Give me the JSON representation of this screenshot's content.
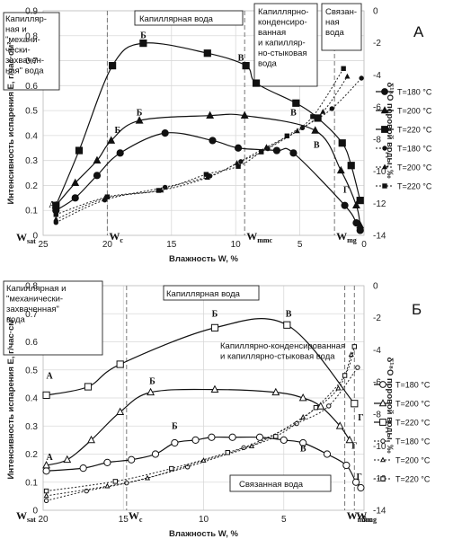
{
  "chart_data": [
    {
      "type": "line",
      "panel_label": "А",
      "xlabel": "Влажность W, %",
      "ylabel": "Интенсивность испарения E, г/час·см²",
      "y2label": "δ¹⁸O поровой воды, ‰",
      "xlim": [
        25,
        0
      ],
      "ylim": [
        0,
        0.9
      ],
      "y2lim": [
        -14,
        0
      ],
      "x_ticks": [
        "25",
        "20",
        "15",
        "10",
        "5",
        "0"
      ],
      "y_ticks": [
        "0",
        "0.1",
        "0.2",
        "0.3",
        "0.4",
        "0.5",
        "0.6",
        "0.7",
        "0.8",
        "0.9"
      ],
      "y2_ticks": [
        "-14",
        "-12",
        "-10",
        "-8",
        "-6",
        "-4",
        "-2",
        "0"
      ],
      "legend": [
        "T=180 °C",
        "T=200 °C",
        "T=220 °C",
        "T=180 °C",
        "T=200 °C",
        "T=220 °C"
      ],
      "moisture_marks": [
        {
          "x": 20,
          "label": "W",
          "sub": "c"
        },
        {
          "x": 9.3,
          "label": "W",
          "sub": "mmc"
        },
        {
          "x": 2.3,
          "label": "W",
          "sub": "mg"
        }
      ],
      "start_label": {
        "label": "W",
        "sub": "sat"
      },
      "regions": [
        {
          "text": [
            "Капилляр-",
            "ная и",
            "\"механи-",
            "чески-",
            "захвачен-",
            "ная\" вода"
          ]
        },
        {
          "text": [
            "Капиллярная вода"
          ]
        },
        {
          "text": [
            "Капиллярно-",
            "конденсиро-",
            "ванная",
            "и капилляр-",
            "но-стыковая",
            "вода"
          ]
        },
        {
          "text": [
            "Связан-",
            "ная",
            "вода"
          ]
        }
      ],
      "point_labels": [
        {
          "text": "А",
          "x": 24.3,
          "y": 0.1
        },
        {
          "text": "Б",
          "x": 17.2,
          "y": 0.78
        },
        {
          "text": "В",
          "x": 9.6,
          "y": 0.69
        },
        {
          "text": "Г",
          "x": 1.4,
          "y": 0.16
        },
        {
          "text": "Б",
          "x": 17.5,
          "y": 0.47
        },
        {
          "text": "В",
          "x": 5.5,
          "y": 0.47
        },
        {
          "text": "Б",
          "x": 19.2,
          "y": 0.4
        },
        {
          "text": "В",
          "x": 3.7,
          "y": 0.34
        }
      ],
      "evaporation_series": [
        {
          "name": "T=180 °C",
          "marker": "circle",
          "x": [
            24,
            22.5,
            20.8,
            19,
            15.5,
            11.8,
            9.8,
            6.8,
            5.5,
            1.5,
            0.6,
            0.3
          ],
          "y": [
            0.1,
            0.15,
            0.24,
            0.33,
            0.41,
            0.38,
            0.35,
            0.34,
            0.33,
            0.12,
            0.05,
            0.02
          ]
        },
        {
          "name": "T=200 °C",
          "marker": "triangle",
          "x": [
            24,
            22.5,
            20.8,
            19.7,
            17.5,
            12,
            9.3,
            3.8,
            1.8,
            0.6,
            0.3
          ],
          "y": [
            0.12,
            0.21,
            0.3,
            0.38,
            0.46,
            0.48,
            0.48,
            0.42,
            0.26,
            0.12,
            0.04
          ]
        },
        {
          "name": "T=220 °C",
          "marker": "square",
          "x": [
            24,
            22.2,
            19.6,
            17.2,
            12.2,
            9.2,
            8.4,
            5.3,
            3.6,
            1.7,
            1,
            0.3
          ],
          "y": [
            0.12,
            0.34,
            0.68,
            0.77,
            0.73,
            0.68,
            0.61,
            0.53,
            0.47,
            0.37,
            0.28,
            0.14
          ]
        }
      ],
      "isotope_series": [
        {
          "name": "T=180 °C",
          "marker": "circle",
          "x": [
            24,
            20.2,
            15.5,
            12,
            9.6,
            7.5,
            4.8,
            2.5,
            0.2
          ],
          "y": [
            -13.2,
            -11.8,
            -11,
            -10.3,
            -9.4,
            -8.6,
            -7.3,
            -6.1,
            -4.2
          ]
        },
        {
          "name": "T=200 °C",
          "marker": "triangle",
          "x": [
            24,
            20.2,
            15.8,
            12.2,
            9.9,
            7.6,
            5.2,
            3.2,
            1.3
          ],
          "y": [
            -13,
            -11.7,
            -11.2,
            -10.4,
            -9.5,
            -8.5,
            -7.5,
            -6.3,
            -4.1
          ]
        },
        {
          "name": "T=220 °C",
          "marker": "square",
          "x": [
            24,
            20,
            16,
            12.3,
            9.8,
            8,
            6,
            4,
            1.6
          ],
          "y": [
            -12.7,
            -11.6,
            -11.2,
            -10.2,
            -9.7,
            -8.8,
            -7.8,
            -6.6,
            -3.6
          ]
        }
      ]
    },
    {
      "type": "line",
      "panel_label": "Б",
      "xlabel": "Влажность W, %",
      "ylabel": "Интенсивность испарения E, г/час·см²",
      "y2label": "δ¹⁸O поровой воды, ‰",
      "xlim": [
        20,
        0
      ],
      "ylim": [
        0,
        0.8
      ],
      "y2lim": [
        -14,
        0
      ],
      "x_ticks": [
        "20",
        "15",
        "10",
        "5",
        "0"
      ],
      "y_ticks": [
        "0",
        "0.1",
        "0.2",
        "0.3",
        "0.4",
        "0.5",
        "0.6",
        "0.7",
        "0.8"
      ],
      "y2_ticks": [
        "-14",
        "-12",
        "-10",
        "-8",
        "-6",
        "-4",
        "-2",
        "0"
      ],
      "legend": [
        "T=180 °C",
        "T=200 °C",
        "T=220 °C",
        "T=180 °C",
        "T=200 °C",
        "T=220 °C"
      ],
      "moisture_marks": [
        {
          "x": 14.8,
          "label": "W",
          "sub": "c"
        },
        {
          "x": 1.2,
          "label": "W",
          "sub": "mmc"
        },
        {
          "x": 0.6,
          "label": "W",
          "sub": "mg"
        }
      ],
      "start_label": {
        "label": "W",
        "sub": "sat"
      },
      "regions": [
        {
          "text": [
            "Капиллярная и",
            "\"механически-",
            "захваченная\"",
            "вода"
          ]
        },
        {
          "text": [
            "Капиллярная вода"
          ]
        },
        {
          "text": [
            "Капиллярно-конденсированная",
            "и капиллярно-стыковая  вода"
          ]
        },
        {
          "text": [
            "Связанная вода"
          ]
        }
      ],
      "point_labels": [
        {
          "text": "А",
          "x": 19.6,
          "y": 0.46
        },
        {
          "text": "Б",
          "x": 9.3,
          "y": 0.68
        },
        {
          "text": "В",
          "x": 4.7,
          "y": 0.68
        },
        {
          "text": "Г",
          "x": 0.2,
          "y": 0.31
        },
        {
          "text": "Б",
          "x": 13.2,
          "y": 0.44
        },
        {
          "text": "Г",
          "x": 0.6,
          "y": 0.21
        },
        {
          "text": "А",
          "x": 19.6,
          "y": 0.17
        },
        {
          "text": "Б",
          "x": 11.8,
          "y": 0.28
        },
        {
          "text": "В",
          "x": 3.8,
          "y": 0.2
        },
        {
          "text": "Г",
          "x": 0.3,
          "y": 0.1
        }
      ],
      "evaporation_series": [
        {
          "name": "T=180 °C",
          "marker": "circle",
          "x": [
            19.8,
            17.5,
            16,
            14.5,
            13,
            11.8,
            10.5,
            9.5,
            8.2,
            6.5,
            5,
            3.8,
            2.3,
            1.1,
            0.5,
            0.2
          ],
          "y": [
            0.14,
            0.15,
            0.17,
            0.18,
            0.2,
            0.24,
            0.25,
            0.26,
            0.26,
            0.26,
            0.25,
            0.24,
            0.2,
            0.16,
            0.1,
            0.08
          ]
        },
        {
          "name": "T=200 °C",
          "marker": "triangle",
          "x": [
            19.8,
            18.5,
            17,
            15.2,
            13.3,
            9.3,
            5.5,
            3.8,
            2.7,
            1.5,
            0.9
          ],
          "y": [
            0.16,
            0.18,
            0.25,
            0.35,
            0.42,
            0.43,
            0.42,
            0.4,
            0.37,
            0.3,
            0.25
          ]
        },
        {
          "name": "T=220 °C",
          "marker": "square",
          "x": [
            19.8,
            17.2,
            15.2,
            9.3,
            4.8,
            0.6
          ],
          "y": [
            0.41,
            0.44,
            0.52,
            0.65,
            0.66,
            0.38
          ]
        }
      ],
      "isotope_series": [
        {
          "name": "T=180 °C",
          "marker": "circle",
          "x": [
            19.8,
            17.3,
            14.8,
            11,
            7.5,
            4.2,
            2.2,
            0.4
          ],
          "y": [
            -13.4,
            -12.8,
            -12.3,
            -11.3,
            -10.1,
            -8.6,
            -7.5,
            -5.1
          ]
        },
        {
          "name": "T=200 °C",
          "marker": "triangle",
          "x": [
            19.8,
            16,
            13.5,
            10,
            7,
            3.8,
            1.6,
            0.8
          ],
          "y": [
            -13.1,
            -12.5,
            -12,
            -10.9,
            -10,
            -8.2,
            -6.4,
            -4.3
          ]
        },
        {
          "name": "T=220 °C",
          "marker": "square",
          "x": [
            19.8,
            15.5,
            12,
            8.5,
            5.5,
            3,
            1.2,
            0.6
          ],
          "y": [
            -12.8,
            -12.2,
            -11.4,
            -10.4,
            -9.4,
            -7.6,
            -5.6,
            -3.8
          ]
        }
      ]
    }
  ]
}
